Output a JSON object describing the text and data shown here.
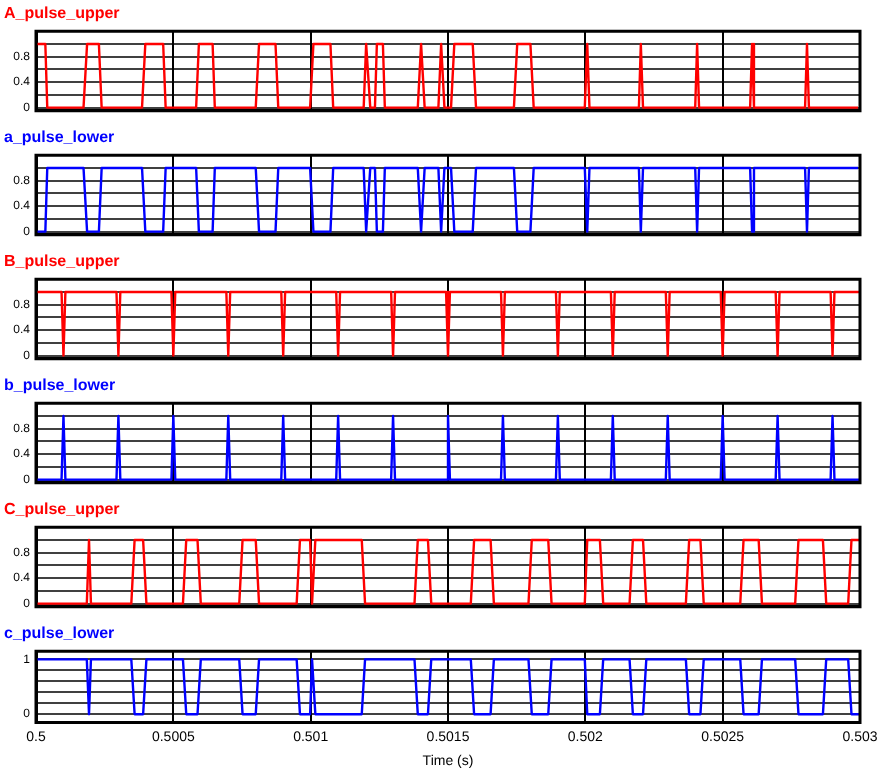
{
  "chart_data": [
    {
      "type": "line",
      "title": "A_pulse_upper",
      "x": [
        0.5,
        0.500034,
        0.500041,
        0.500173,
        0.500186,
        0.500229,
        0.500239,
        0.500386,
        0.500398,
        0.500463,
        0.500472,
        0.500583,
        0.500593,
        0.500643,
        0.500651,
        0.5008,
        0.500812,
        0.500872,
        0.500882,
        0.500998,
        0.50101,
        0.501072,
        0.501082,
        0.501193,
        0.501202,
        0.501217,
        0.501234,
        0.501241,
        0.501263,
        0.50127,
        0.50139,
        0.501402,
        0.501415,
        0.501465,
        0.501475,
        0.501487,
        0.501511,
        0.501523,
        0.50159,
        0.501602,
        0.50174,
        0.501752,
        0.5018,
        0.501812,
        0.501998,
        0.502007,
        0.502015,
        0.502195,
        0.502202,
        0.50221,
        0.5024,
        0.502407,
        0.502414,
        0.5026,
        0.502607,
        0.502614,
        0.5028,
        0.502807,
        0.502814,
        0.502993
      ],
      "series": [
        {
          "color": "#ff0000",
          "values": [
            1,
            1,
            0,
            0,
            1,
            1,
            0,
            0,
            1,
            1,
            0,
            0,
            1,
            1,
            0,
            0,
            1,
            1,
            0,
            0,
            1,
            1,
            0,
            0,
            1,
            0,
            0,
            1,
            1,
            0,
            0,
            1,
            0,
            0,
            1,
            0,
            0,
            1,
            1,
            0,
            0,
            1,
            1,
            0,
            0,
            1,
            0,
            0,
            1,
            0,
            0,
            1,
            0,
            0,
            1,
            0,
            0,
            1,
            0,
            0
          ]
        }
      ],
      "xlim": [
        0.5,
        0.503
      ],
      "xticks": [
        0.5,
        0.5005,
        0.501,
        0.5015,
        0.502,
        0.5025,
        0.503
      ],
      "ylim": [
        -0.05,
        1.2
      ],
      "yticks": [
        0,
        {
          "value": 0.2,
          "label": null
        },
        0.4,
        {
          "value": 0.6,
          "label": null
        },
        0.8,
        {
          "value": 1,
          "label": null
        }
      ],
      "grid": true,
      "tick_labels": "y"
    },
    {
      "type": "line",
      "title": "a_pulse_lower",
      "x": [
        0.5,
        0.500034,
        0.500041,
        0.500173,
        0.500186,
        0.500229,
        0.500239,
        0.500386,
        0.500398,
        0.500463,
        0.500472,
        0.500583,
        0.500593,
        0.500643,
        0.500651,
        0.5008,
        0.500812,
        0.500872,
        0.500882,
        0.500998,
        0.50101,
        0.501072,
        0.501082,
        0.501193,
        0.501202,
        0.501217,
        0.501234,
        0.501241,
        0.501263,
        0.50127,
        0.50139,
        0.501402,
        0.501415,
        0.501465,
        0.501475,
        0.501487,
        0.501511,
        0.501523,
        0.50159,
        0.501602,
        0.50174,
        0.501752,
        0.5018,
        0.501812,
        0.501998,
        0.502007,
        0.502015,
        0.502195,
        0.502202,
        0.50221,
        0.5024,
        0.502407,
        0.502414,
        0.5026,
        0.502607,
        0.502614,
        0.5028,
        0.502807,
        0.502814,
        0.502993
      ],
      "series": [
        {
          "color": "#0000ff",
          "values": [
            0,
            0,
            1,
            1,
            0,
            0,
            1,
            1,
            0,
            0,
            1,
            1,
            0,
            0,
            1,
            1,
            0,
            0,
            1,
            1,
            0,
            0,
            1,
            1,
            0,
            1,
            1,
            0,
            0,
            1,
            1,
            0,
            1,
            1,
            0,
            1,
            1,
            0,
            0,
            1,
            1,
            0,
            0,
            1,
            1,
            0,
            1,
            1,
            0,
            1,
            1,
            0,
            1,
            1,
            0,
            1,
            1,
            0,
            1,
            1
          ]
        }
      ],
      "xlim": [
        0.5,
        0.503
      ],
      "xticks": [
        0.5,
        0.5005,
        0.501,
        0.5015,
        0.502,
        0.5025,
        0.503
      ],
      "ylim": [
        -0.05,
        1.2
      ],
      "yticks": [
        0,
        {
          "value": 0.2,
          "label": null
        },
        0.4,
        {
          "value": 0.6,
          "label": null
        },
        0.8,
        {
          "value": 1,
          "label": null
        }
      ],
      "grid": true,
      "tick_labels": "y"
    },
    {
      "type": "line",
      "title": "B_pulse_upper",
      "x": [
        0.5,
        0.500093,
        0.5001,
        0.500107,
        0.500293,
        0.5003,
        0.500307,
        0.500493,
        0.5005,
        0.500507,
        0.500693,
        0.5007,
        0.500707,
        0.500893,
        0.5009,
        0.500907,
        0.501093,
        0.5011,
        0.501107,
        0.501293,
        0.5013,
        0.501307,
        0.501493,
        0.5015,
        0.501507,
        0.501693,
        0.5017,
        0.501707,
        0.501893,
        0.5019,
        0.501907,
        0.502093,
        0.5021,
        0.502107,
        0.502293,
        0.5023,
        0.502307,
        0.502493,
        0.5025,
        0.502507,
        0.502693,
        0.5027,
        0.502707,
        0.502893,
        0.5029,
        0.502907,
        0.503
      ],
      "series": [
        {
          "color": "#ff0000",
          "values": [
            1,
            1,
            0,
            1,
            1,
            0,
            1,
            1,
            0,
            1,
            1,
            0,
            1,
            1,
            0,
            1,
            1,
            0,
            1,
            1,
            0,
            1,
            1,
            0,
            1,
            1,
            0,
            1,
            1,
            0,
            1,
            1,
            0,
            1,
            1,
            0,
            1,
            1,
            0,
            1,
            1,
            0,
            1,
            1,
            0,
            1,
            1
          ]
        }
      ],
      "xlim": [
        0.5,
        0.503
      ],
      "xticks": [
        0.5,
        0.5005,
        0.501,
        0.5015,
        0.502,
        0.5025,
        0.503
      ],
      "ylim": [
        -0.05,
        1.2
      ],
      "yticks": [
        0,
        {
          "value": 0.2,
          "label": null
        },
        0.4,
        {
          "value": 0.6,
          "label": null
        },
        0.8,
        {
          "value": 1,
          "label": null
        }
      ],
      "grid": true,
      "tick_labels": "y"
    },
    {
      "type": "line",
      "title": "b_pulse_lower",
      "x": [
        0.5,
        0.500093,
        0.5001,
        0.500107,
        0.500293,
        0.5003,
        0.500307,
        0.500493,
        0.5005,
        0.500507,
        0.500693,
        0.5007,
        0.500707,
        0.500893,
        0.5009,
        0.500907,
        0.501093,
        0.5011,
        0.501107,
        0.501293,
        0.5013,
        0.501307,
        0.501493,
        0.5015,
        0.501507,
        0.501693,
        0.5017,
        0.501707,
        0.501893,
        0.5019,
        0.501907,
        0.502093,
        0.5021,
        0.502107,
        0.502293,
        0.5023,
        0.502307,
        0.502493,
        0.5025,
        0.502507,
        0.502693,
        0.5027,
        0.502707,
        0.502893,
        0.5029,
        0.502907,
        0.503
      ],
      "series": [
        {
          "color": "#0000ff",
          "values": [
            0,
            0,
            1,
            0,
            0,
            1,
            0,
            0,
            1,
            0,
            0,
            1,
            0,
            0,
            1,
            0,
            0,
            1,
            0,
            0,
            1,
            0,
            0,
            1,
            0,
            0,
            1,
            0,
            0,
            1,
            0,
            0,
            1,
            0,
            0,
            1,
            0,
            0,
            1,
            0,
            0,
            1,
            0,
            0,
            1,
            0,
            0
          ]
        }
      ],
      "xlim": [
        0.5,
        0.503
      ],
      "xticks": [
        0.5,
        0.5005,
        0.501,
        0.5015,
        0.502,
        0.5025,
        0.503
      ],
      "ylim": [
        -0.05,
        1.2
      ],
      "yticks": [
        0,
        {
          "value": 0.2,
          "label": null
        },
        0.4,
        {
          "value": 0.6,
          "label": null
        },
        0.8,
        {
          "value": 1,
          "label": null
        }
      ],
      "grid": true,
      "tick_labels": "y"
    },
    {
      "type": "line",
      "title": "C_pulse_upper",
      "x": [
        0.5,
        0.500185,
        0.500193,
        0.5002,
        0.500347,
        0.500359,
        0.50039,
        0.500402,
        0.500535,
        0.500547,
        0.500588,
        0.5006,
        0.50074,
        0.500752,
        0.5008,
        0.500812,
        0.500949,
        0.500961,
        0.500998,
        0.501005,
        0.501017,
        0.501186,
        0.501198,
        0.501378,
        0.50139,
        0.501427,
        0.501439,
        0.501583,
        0.501595,
        0.501655,
        0.501667,
        0.501793,
        0.501805,
        0.501865,
        0.501877,
        0.501998,
        0.502007,
        0.502053,
        0.502065,
        0.502161,
        0.502173,
        0.50221,
        0.502222,
        0.502366,
        0.502378,
        0.502419,
        0.502431,
        0.502564,
        0.502576,
        0.502631,
        0.502643,
        0.502764,
        0.502776,
        0.502865,
        0.502877,
        0.502957,
        0.502969,
        0.503
      ],
      "series": [
        {
          "color": "#ff0000",
          "values": [
            0,
            0,
            1,
            0,
            0,
            1,
            1,
            0,
            0,
            1,
            1,
            0,
            0,
            1,
            1,
            0,
            0,
            1,
            1,
            0,
            1,
            1,
            0,
            0,
            1,
            1,
            0,
            0,
            1,
            1,
            0,
            0,
            1,
            1,
            0,
            0,
            1,
            1,
            0,
            0,
            1,
            1,
            0,
            0,
            1,
            1,
            0,
            0,
            1,
            1,
            0,
            0,
            1,
            1,
            0,
            0,
            1,
            1
          ]
        }
      ],
      "xlim": [
        0.5,
        0.503
      ],
      "xticks": [
        0.5,
        0.5005,
        0.501,
        0.5015,
        0.502,
        0.5025,
        0.503
      ],
      "ylim": [
        -0.05,
        1.2
      ],
      "yticks": [
        0,
        {
          "value": 0.2,
          "label": null
        },
        0.4,
        {
          "value": 0.6,
          "label": null
        },
        0.8,
        {
          "value": 1,
          "label": null
        }
      ],
      "grid": true,
      "tick_labels": "y"
    },
    {
      "type": "line",
      "title": "c_pulse_lower",
      "xlabel": "Time (s)",
      "x": [
        0.5,
        0.500185,
        0.500193,
        0.5002,
        0.500347,
        0.500359,
        0.50039,
        0.500402,
        0.500535,
        0.500547,
        0.500588,
        0.5006,
        0.50074,
        0.500752,
        0.5008,
        0.500812,
        0.500949,
        0.500961,
        0.500998,
        0.501005,
        0.501017,
        0.501186,
        0.501198,
        0.501378,
        0.50139,
        0.501427,
        0.501439,
        0.501583,
        0.501595,
        0.501655,
        0.501667,
        0.501793,
        0.501805,
        0.501865,
        0.501877,
        0.501998,
        0.502007,
        0.502053,
        0.502065,
        0.502161,
        0.502173,
        0.50221,
        0.502222,
        0.502366,
        0.502378,
        0.502419,
        0.502431,
        0.502564,
        0.502576,
        0.502631,
        0.502643,
        0.502764,
        0.502776,
        0.502865,
        0.502877,
        0.502957,
        0.502969,
        0.503
      ],
      "series": [
        {
          "color": "#0000ff",
          "values": [
            1,
            1,
            0,
            1,
            1,
            0,
            0,
            1,
            1,
            0,
            0,
            1,
            1,
            0,
            0,
            1,
            1,
            0,
            0,
            1,
            0,
            0,
            1,
            1,
            0,
            0,
            1,
            1,
            0,
            0,
            1,
            1,
            0,
            0,
            1,
            1,
            0,
            0,
            1,
            1,
            0,
            0,
            1,
            1,
            0,
            0,
            1,
            1,
            0,
            0,
            1,
            1,
            0,
            0,
            1,
            1,
            0,
            0
          ]
        }
      ],
      "xlim": [
        0.5,
        0.503
      ],
      "xticks": [
        0.5,
        0.5005,
        0.501,
        0.5015,
        0.502,
        0.5025,
        0.503
      ],
      "ylim": [
        -0.15,
        1.15
      ],
      "yticks": [
        0,
        {
          "value": 0.2,
          "label": null
        },
        {
          "value": 0.4,
          "label": null
        },
        {
          "value": 0.6,
          "label": null
        },
        {
          "value": 0.8,
          "label": null
        },
        1
      ],
      "grid": true
    }
  ]
}
